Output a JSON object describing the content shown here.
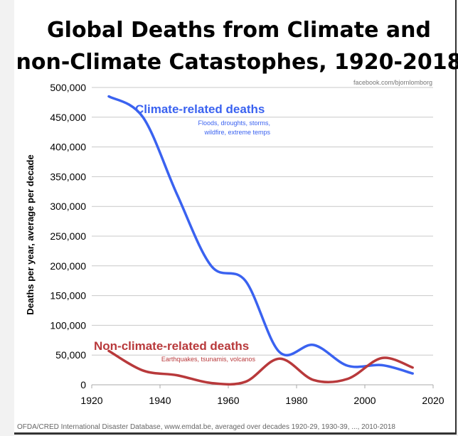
{
  "chart_data": {
    "type": "line",
    "title": "Global Deaths from Climate and non-Climate Catastophes, 1920-2018",
    "title_lines": [
      "Global Deaths from Climate and",
      "non-Climate Catastophes, 1920-2018"
    ],
    "credit": "facebook.com/bjornlomborg",
    "xlabel": "",
    "ylabel": "Deaths per year, average per decade",
    "xlim": [
      1920,
      2020
    ],
    "ylim": [
      0,
      500000
    ],
    "xticks": [
      "1920",
      "1940",
      "1960",
      "1980",
      "2000",
      "2020"
    ],
    "yticks": [
      "0",
      "50,000",
      "100,000",
      "150,000",
      "200,000",
      "250,000",
      "300,000",
      "350,000",
      "400,000",
      "450,000",
      "500,000"
    ],
    "grid": true,
    "smoothed": true,
    "x": [
      1925,
      1935,
      1945,
      1955,
      1965,
      1975,
      1985,
      1995,
      2005,
      2014
    ],
    "series": [
      {
        "name": "Climate-related deaths",
        "note": [
          "Floods, droughts, storms,",
          "wildfire, extreme temps"
        ],
        "color": "#3a62f0",
        "values": [
          485000,
          450000,
          320000,
          200000,
          175000,
          55000,
          67000,
          32000,
          33000,
          19000
        ]
      },
      {
        "name": "Non-climate-related deaths",
        "note": [
          "Earthquakes, tsunamis, volcanos"
        ],
        "color": "#b8393b",
        "values": [
          57000,
          24000,
          16000,
          3000,
          5000,
          44000,
          8000,
          10000,
          45000,
          29000
        ]
      }
    ],
    "source": "OFDA/CRED International Disaster Database, www.emdat.be, averaged over decades 1920-29, 1930-39, ..., 2010-2018"
  }
}
